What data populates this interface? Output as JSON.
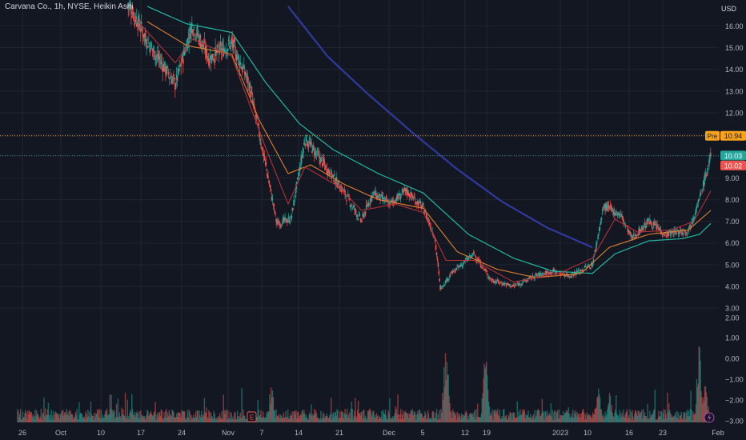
{
  "header": {
    "title": "Carvana Co., 1h, NYSE, Heikin Ashi",
    "currency": "USD"
  },
  "colors": {
    "background": "#131722",
    "grid": "#1f2430",
    "text": "#b2b5be",
    "up": "#26a69a",
    "down": "#ef5350",
    "ma_fast": "#b2313a",
    "ma_mid": "#e0802b",
    "ma_slow": "#1fb8a3",
    "ma_long": "#2f3a9e",
    "pre_line": "#f7a21b",
    "last_line": "#26a69a"
  },
  "chart_data": {
    "type": "candlestick",
    "chart_style": "Heikin Ashi",
    "symbol": "Carvana Co.",
    "interval": "1h",
    "exchange": "NYSE",
    "currency": "USD",
    "x_ticks": [
      "26",
      "Oct",
      "10",
      "17",
      "24",
      "Nov",
      "7",
      "14",
      "21",
      "Dec",
      "5",
      "12",
      "19",
      "2023",
      "10",
      "16",
      "23",
      "Feb"
    ],
    "y_ticks": [
      "16.00",
      "15.00",
      "14.00",
      "13.00",
      "12.00",
      "11.00",
      "10.00",
      "9.00",
      "8.00",
      "7.00",
      "6.00",
      "5.00",
      "4.00",
      "3.00"
    ],
    "y_range": [
      2.6,
      16.9
    ],
    "volume_ticks": [
      "2.00",
      "1.00",
      "0.00",
      "−1.00",
      "−2.00",
      "−3.00"
    ],
    "price_labels": {
      "pre_tag": "Pre",
      "pre": "10.94",
      "last": "10.03",
      "prev": "10.02"
    },
    "event_markers": [
      "E"
    ],
    "price_anchors": [
      {
        "d": 0,
        "v": 16.9
      },
      {
        "d": 20,
        "v": 16.9
      },
      {
        "d": 23,
        "v": 15.3
      },
      {
        "d": 28,
        "v": 13.3
      },
      {
        "d": 31,
        "v": 16.1
      },
      {
        "d": 34,
        "v": 14.5
      },
      {
        "d": 38,
        "v": 15.2
      },
      {
        "d": 41,
        "v": 13.4
      },
      {
        "d": 44,
        "v": 9.6
      },
      {
        "d": 46,
        "v": 6.9
      },
      {
        "d": 48.5,
        "v": 7.1
      },
      {
        "d": 51,
        "v": 10.8
      },
      {
        "d": 55,
        "v": 9.4
      },
      {
        "d": 58,
        "v": 8.3
      },
      {
        "d": 61,
        "v": 7.0
      },
      {
        "d": 63,
        "v": 8.3
      },
      {
        "d": 66,
        "v": 7.8
      },
      {
        "d": 69,
        "v": 8.4
      },
      {
        "d": 72,
        "v": 7.6
      },
      {
        "d": 74,
        "v": 6.3
      },
      {
        "d": 75,
        "v": 3.9
      },
      {
        "d": 77,
        "v": 4.6
      },
      {
        "d": 81,
        "v": 5.5
      },
      {
        "d": 84,
        "v": 4.3
      },
      {
        "d": 88,
        "v": 4.0
      },
      {
        "d": 92,
        "v": 4.5
      },
      {
        "d": 95,
        "v": 4.7
      },
      {
        "d": 98,
        "v": 4.5
      },
      {
        "d": 102,
        "v": 5.0
      },
      {
        "d": 104,
        "v": 7.7
      },
      {
        "d": 107,
        "v": 7.3
      },
      {
        "d": 109,
        "v": 6.2
      },
      {
        "d": 112,
        "v": 7.0
      },
      {
        "d": 115,
        "v": 6.4
      },
      {
        "d": 119,
        "v": 6.6
      },
      {
        "d": 121,
        "v": 8.0
      },
      {
        "d": 123,
        "v": 10.03
      }
    ],
    "ma_fast": [
      {
        "d": 20,
        "v": 16.6
      },
      {
        "d": 28,
        "v": 14.3
      },
      {
        "d": 31,
        "v": 15.4
      },
      {
        "d": 38,
        "v": 14.6
      },
      {
        "d": 44,
        "v": 10.4
      },
      {
        "d": 48,
        "v": 7.8
      },
      {
        "d": 51,
        "v": 9.5
      },
      {
        "d": 57,
        "v": 8.6
      },
      {
        "d": 61,
        "v": 7.5
      },
      {
        "d": 67,
        "v": 7.8
      },
      {
        "d": 72,
        "v": 7.4
      },
      {
        "d": 76,
        "v": 5.2
      },
      {
        "d": 81,
        "v": 5.2
      },
      {
        "d": 88,
        "v": 4.2
      },
      {
        "d": 96,
        "v": 4.6
      },
      {
        "d": 102,
        "v": 5.3
      },
      {
        "d": 106,
        "v": 7.1
      },
      {
        "d": 110,
        "v": 6.5
      },
      {
        "d": 116,
        "v": 6.6
      },
      {
        "d": 120,
        "v": 7.0
      },
      {
        "d": 123,
        "v": 8.4
      }
    ],
    "ma_mid": [
      {
        "d": 23,
        "v": 16.2
      },
      {
        "d": 30,
        "v": 15.1
      },
      {
        "d": 38,
        "v": 14.7
      },
      {
        "d": 43,
        "v": 11.6
      },
      {
        "d": 48,
        "v": 9.2
      },
      {
        "d": 52,
        "v": 9.6
      },
      {
        "d": 58,
        "v": 8.7
      },
      {
        "d": 64,
        "v": 8.0
      },
      {
        "d": 72,
        "v": 7.6
      },
      {
        "d": 78,
        "v": 5.6
      },
      {
        "d": 85,
        "v": 4.8
      },
      {
        "d": 92,
        "v": 4.4
      },
      {
        "d": 100,
        "v": 4.6
      },
      {
        "d": 105,
        "v": 5.8
      },
      {
        "d": 112,
        "v": 6.4
      },
      {
        "d": 119,
        "v": 6.6
      },
      {
        "d": 123,
        "v": 7.5
      }
    ],
    "ma_slow": [
      {
        "d": 23,
        "v": 16.9
      },
      {
        "d": 30,
        "v": 16.1
      },
      {
        "d": 38,
        "v": 15.7
      },
      {
        "d": 44,
        "v": 13.4
      },
      {
        "d": 50,
        "v": 11.5
      },
      {
        "d": 56,
        "v": 10.3
      },
      {
        "d": 64,
        "v": 9.2
      },
      {
        "d": 72,
        "v": 8.3
      },
      {
        "d": 80,
        "v": 6.4
      },
      {
        "d": 88,
        "v": 5.3
      },
      {
        "d": 95,
        "v": 4.7
      },
      {
        "d": 102,
        "v": 4.6
      },
      {
        "d": 106,
        "v": 5.5
      },
      {
        "d": 112,
        "v": 6.1
      },
      {
        "d": 118,
        "v": 6.2
      },
      {
        "d": 121,
        "v": 6.4
      },
      {
        "d": 123,
        "v": 6.9
      }
    ],
    "ma_long": [
      {
        "d": 48,
        "v": 16.9
      },
      {
        "d": 55,
        "v": 14.6
      },
      {
        "d": 62,
        "v": 12.9
      },
      {
        "d": 70,
        "v": 11.1
      },
      {
        "d": 78,
        "v": 9.4
      },
      {
        "d": 86,
        "v": 7.9
      },
      {
        "d": 94,
        "v": 6.7
      },
      {
        "d": 102,
        "v": 5.8
      }
    ],
    "volume_spikes": [
      {
        "d": 45,
        "v": 0.45
      },
      {
        "d": 76,
        "v": 1.0
      },
      {
        "d": 83,
        "v": 0.75
      },
      {
        "d": 103,
        "v": 0.4
      },
      {
        "d": 105,
        "v": 0.35
      },
      {
        "d": 121,
        "v": 1.0
      },
      {
        "d": 122,
        "v": 0.55
      }
    ]
  }
}
